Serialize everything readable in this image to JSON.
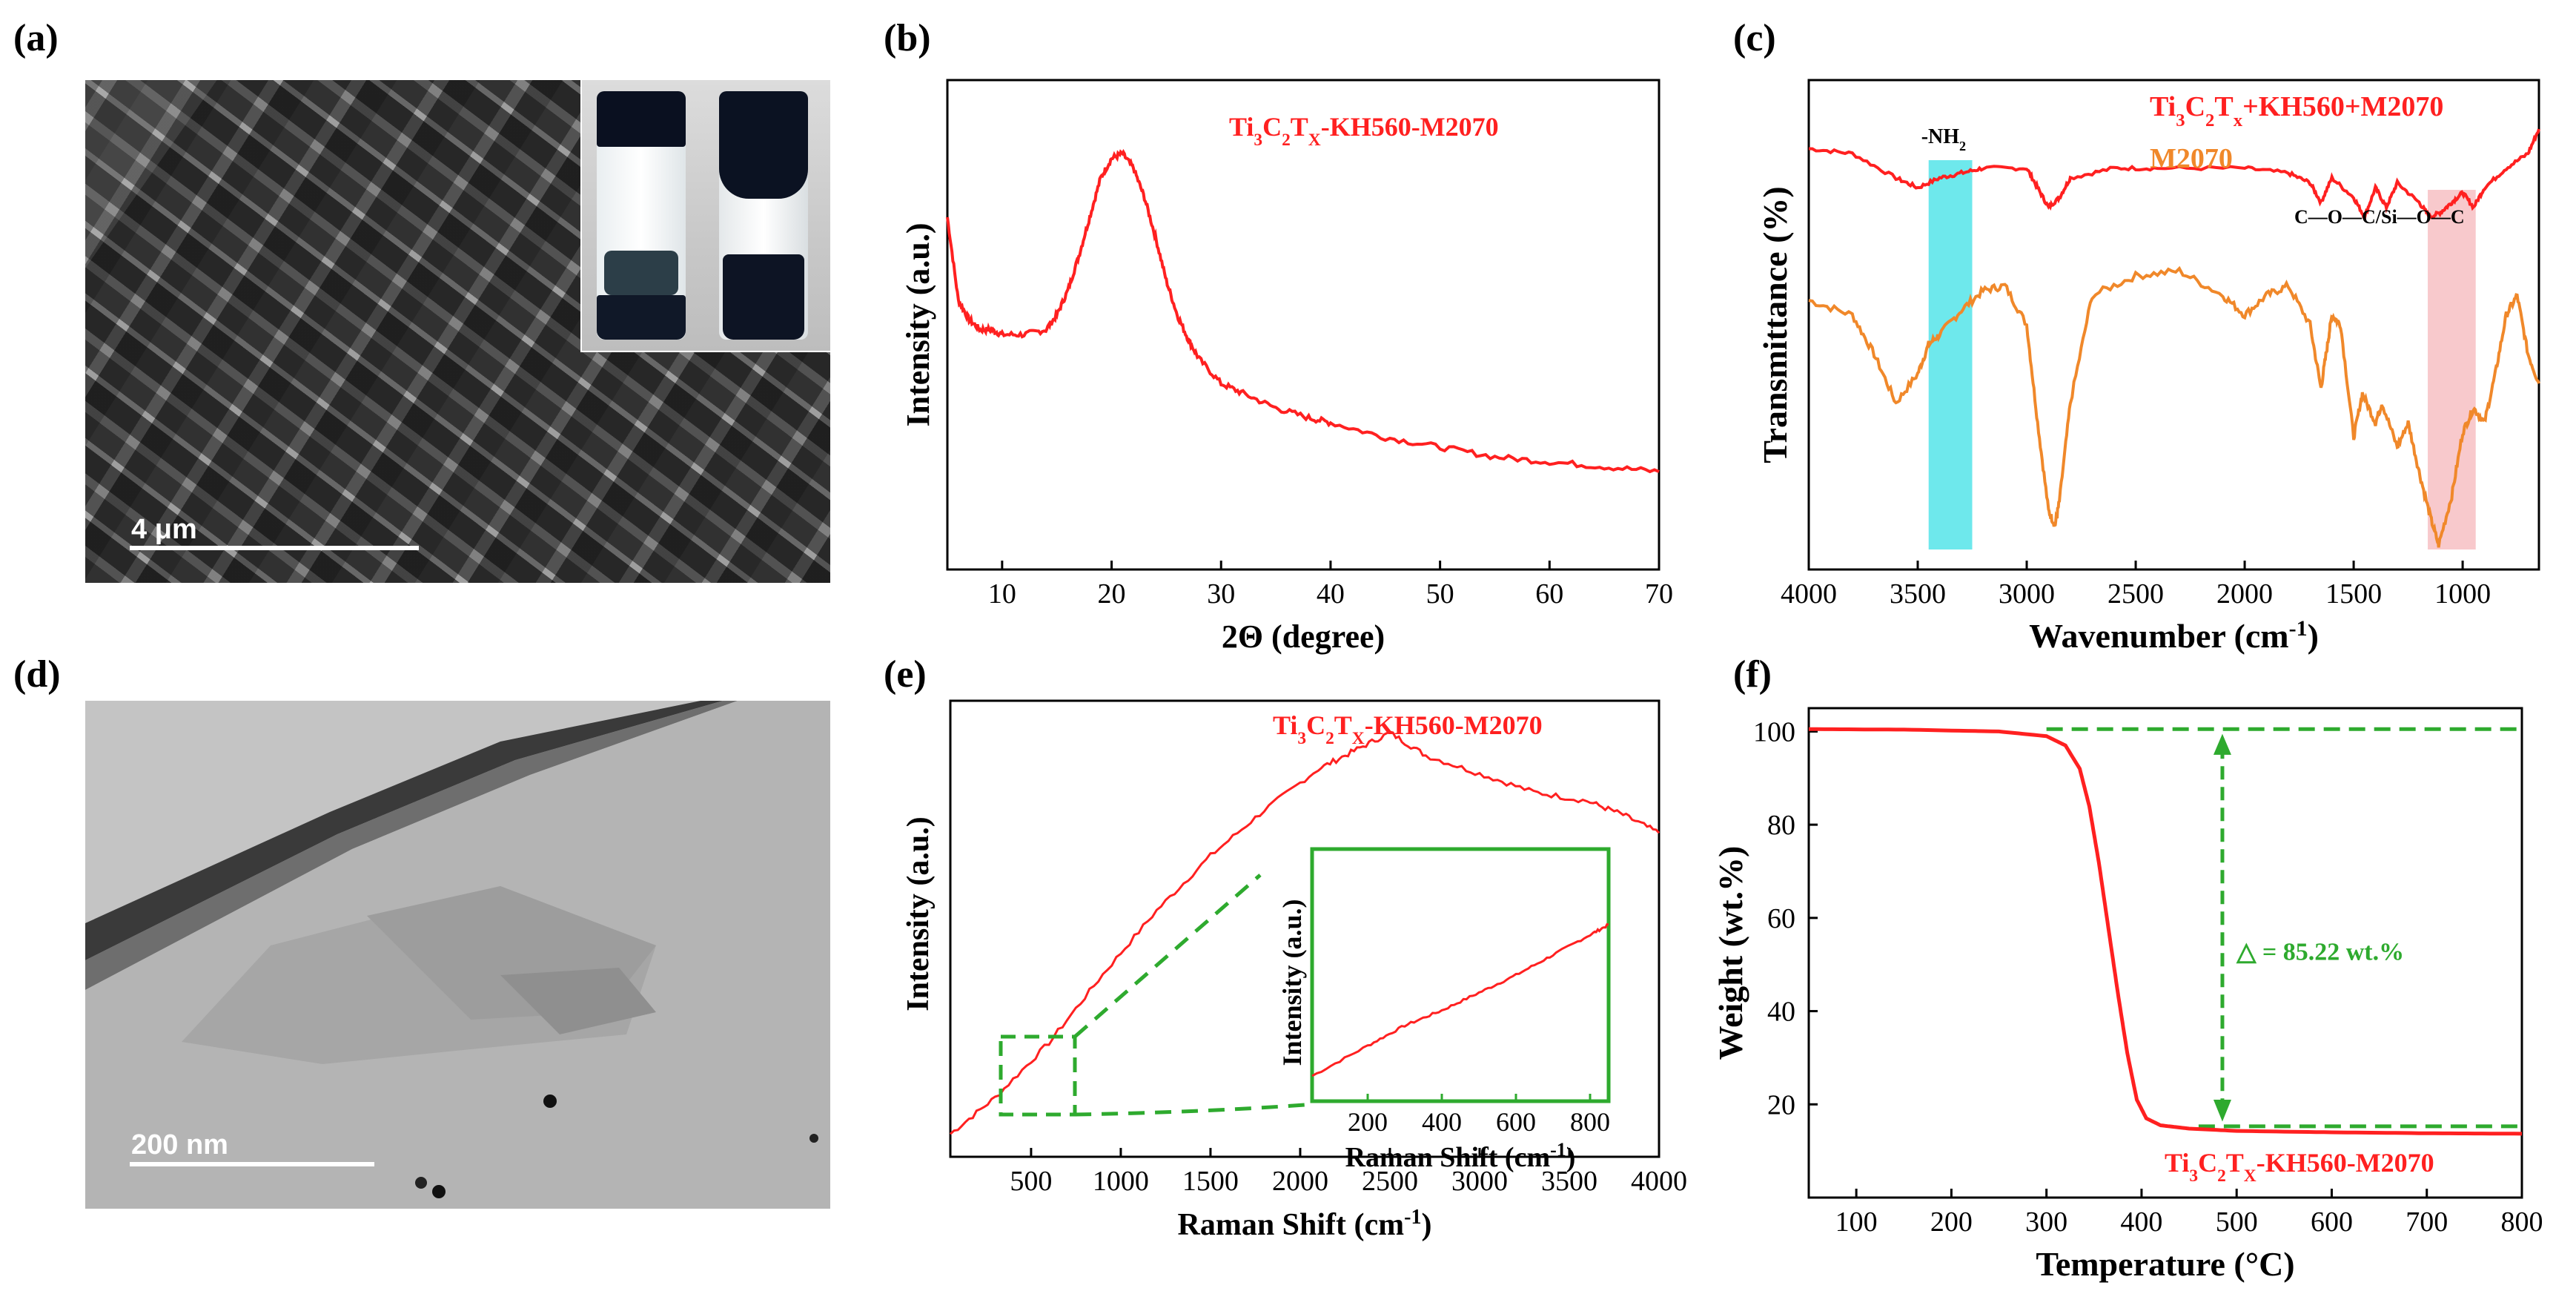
{
  "panels": {
    "a": "(a)",
    "b": "(b)",
    "c": "(c)",
    "d": "(d)",
    "e": "(e)",
    "f": "(f)"
  },
  "images": {
    "sem_scale": "4 μm",
    "tem_scale": "200 nm"
  },
  "colors": {
    "red": "#ff2020",
    "orange": "#f0882a",
    "green": "#2eaa2e",
    "cyan": "#6ee8ec",
    "pink": "#f8c9cc"
  },
  "chart_data": [
    {
      "panel": "b",
      "type": "line",
      "title": "Ti3C2TX-KH560-M2070",
      "xlabel": "2Θ (degree)",
      "ylabel": "Intensity (a.u.)",
      "xlim": [
        5,
        70
      ],
      "xticks": [
        10,
        20,
        30,
        40,
        50,
        60,
        70
      ],
      "series": [
        {
          "color": "#ff2020",
          "x": [
            5,
            6,
            7,
            8,
            9,
            10,
            12,
            14,
            15,
            16,
            17,
            18,
            19,
            20,
            21,
            22,
            23,
            24,
            25,
            26,
            27,
            28,
            30,
            32,
            35,
            38,
            40,
            45,
            50,
            55,
            60,
            65,
            70
          ],
          "y": [
            0.72,
            0.55,
            0.51,
            0.49,
            0.49,
            0.48,
            0.48,
            0.49,
            0.52,
            0.57,
            0.64,
            0.72,
            0.8,
            0.84,
            0.85,
            0.82,
            0.76,
            0.68,
            0.59,
            0.52,
            0.47,
            0.43,
            0.38,
            0.36,
            0.33,
            0.31,
            0.3,
            0.27,
            0.25,
            0.23,
            0.22,
            0.21,
            0.2
          ]
        }
      ]
    },
    {
      "panel": "c",
      "type": "line",
      "xlabel": "Wavenumber (cm-1)",
      "ylabel": "Transmittance (%)",
      "xlim": [
        4000,
        650
      ],
      "xticks": [
        4000,
        3500,
        3000,
        2500,
        2000,
        1500,
        1000
      ],
      "legend": [
        "Ti3C2Tx+KH560+M2070",
        "M2070"
      ],
      "annotations": [
        "-NH2",
        "C—O—C/Si—O—C"
      ],
      "highlight_bands": [
        [
          3450,
          3250
        ],
        [
          1160,
          940
        ]
      ],
      "series": [
        {
          "name": "Ti3C2Tx+KH560+M2070",
          "color": "#ff2020",
          "x": [
            4000,
            3800,
            3600,
            3500,
            3400,
            3300,
            3200,
            3000,
            2950,
            2900,
            2850,
            2800,
            2600,
            2400,
            2000,
            1800,
            1700,
            1650,
            1600,
            1500,
            1450,
            1400,
            1350,
            1300,
            1200,
            1150,
            1100,
            1050,
            1000,
            950,
            900,
            800,
            700,
            650
          ],
          "y": [
            0.86,
            0.85,
            0.8,
            0.78,
            0.8,
            0.81,
            0.82,
            0.82,
            0.78,
            0.74,
            0.76,
            0.8,
            0.82,
            0.82,
            0.82,
            0.81,
            0.79,
            0.75,
            0.8,
            0.76,
            0.72,
            0.78,
            0.74,
            0.79,
            0.75,
            0.72,
            0.73,
            0.75,
            0.77,
            0.74,
            0.78,
            0.82,
            0.85,
            0.9
          ]
        },
        {
          "name": "M2070",
          "color": "#f0882a",
          "x": [
            4000,
            3800,
            3700,
            3600,
            3500,
            3450,
            3400,
            3300,
            3200,
            3100,
            3000,
            2950,
            2900,
            2870,
            2850,
            2800,
            2700,
            2500,
            2300,
            2100,
            2000,
            1900,
            1800,
            1700,
            1650,
            1620,
            1600,
            1560,
            1500,
            1460,
            1400,
            1370,
            1300,
            1250,
            1200,
            1150,
            1110,
            1050,
            1000,
            950,
            900,
            850,
            800,
            750,
            700,
            650
          ],
          "y": [
            0.55,
            0.52,
            0.44,
            0.34,
            0.4,
            0.46,
            0.48,
            0.53,
            0.57,
            0.58,
            0.5,
            0.3,
            0.12,
            0.09,
            0.14,
            0.34,
            0.56,
            0.6,
            0.61,
            0.56,
            0.52,
            0.56,
            0.58,
            0.5,
            0.37,
            0.46,
            0.52,
            0.5,
            0.27,
            0.36,
            0.3,
            0.34,
            0.25,
            0.3,
            0.2,
            0.11,
            0.05,
            0.15,
            0.28,
            0.33,
            0.3,
            0.4,
            0.52,
            0.56,
            0.44,
            0.38
          ]
        }
      ]
    },
    {
      "panel": "e",
      "type": "line",
      "title": "Ti3C2TX-KH560-M2070",
      "xlabel": "Raman Shift (cm-1)",
      "ylabel": "Intensity (a.u.)",
      "xlim": [
        50,
        4000
      ],
      "xticks": [
        500,
        1000,
        1500,
        2000,
        2500,
        3000,
        3500,
        4000
      ],
      "series": [
        {
          "color": "#ff2020",
          "x": [
            50,
            300,
            600,
            900,
            1200,
            1500,
            1800,
            2100,
            2300,
            2500,
            2700,
            3000,
            3300,
            3600,
            3800,
            4000
          ],
          "y": [
            0.05,
            0.13,
            0.25,
            0.4,
            0.54,
            0.66,
            0.76,
            0.85,
            0.89,
            0.93,
            0.88,
            0.84,
            0.8,
            0.78,
            0.75,
            0.71
          ]
        }
      ],
      "inset": {
        "xlabel": "Raman Shift (cm-1)",
        "ylabel": "Intensity (a.u.)",
        "xlim": [
          50,
          850
        ],
        "xticks": [
          200,
          400,
          600,
          800
        ],
        "x": [
          50,
          200,
          300,
          400,
          500,
          600,
          700,
          800,
          850
        ],
        "y": [
          0.1,
          0.22,
          0.3,
          0.36,
          0.43,
          0.5,
          0.58,
          0.66,
          0.7
        ]
      }
    },
    {
      "panel": "f",
      "type": "line",
      "title": "Ti3C2TX-KH560-M2070",
      "xlabel": "Temperature (°C)",
      "ylabel": "Weight (wt.%)",
      "xlim": [
        50,
        800
      ],
      "ylim": [
        0,
        105
      ],
      "xticks": [
        100,
        200,
        300,
        400,
        500,
        600,
        700,
        800
      ],
      "yticks": [
        20,
        40,
        60,
        80,
        100
      ],
      "annotation": "△ = 85.22 wt.%",
      "series": [
        {
          "color": "#ff2020",
          "x": [
            50,
            150,
            250,
            300,
            320,
            335,
            345,
            355,
            365,
            375,
            385,
            395,
            405,
            420,
            450,
            500,
            600,
            700,
            800
          ],
          "y": [
            100.5,
            100.4,
            100,
            99,
            97,
            92,
            84,
            72,
            58,
            44,
            31,
            21,
            17,
            15.5,
            14.8,
            14.3,
            14,
            13.8,
            13.7
          ]
        }
      ]
    }
  ]
}
